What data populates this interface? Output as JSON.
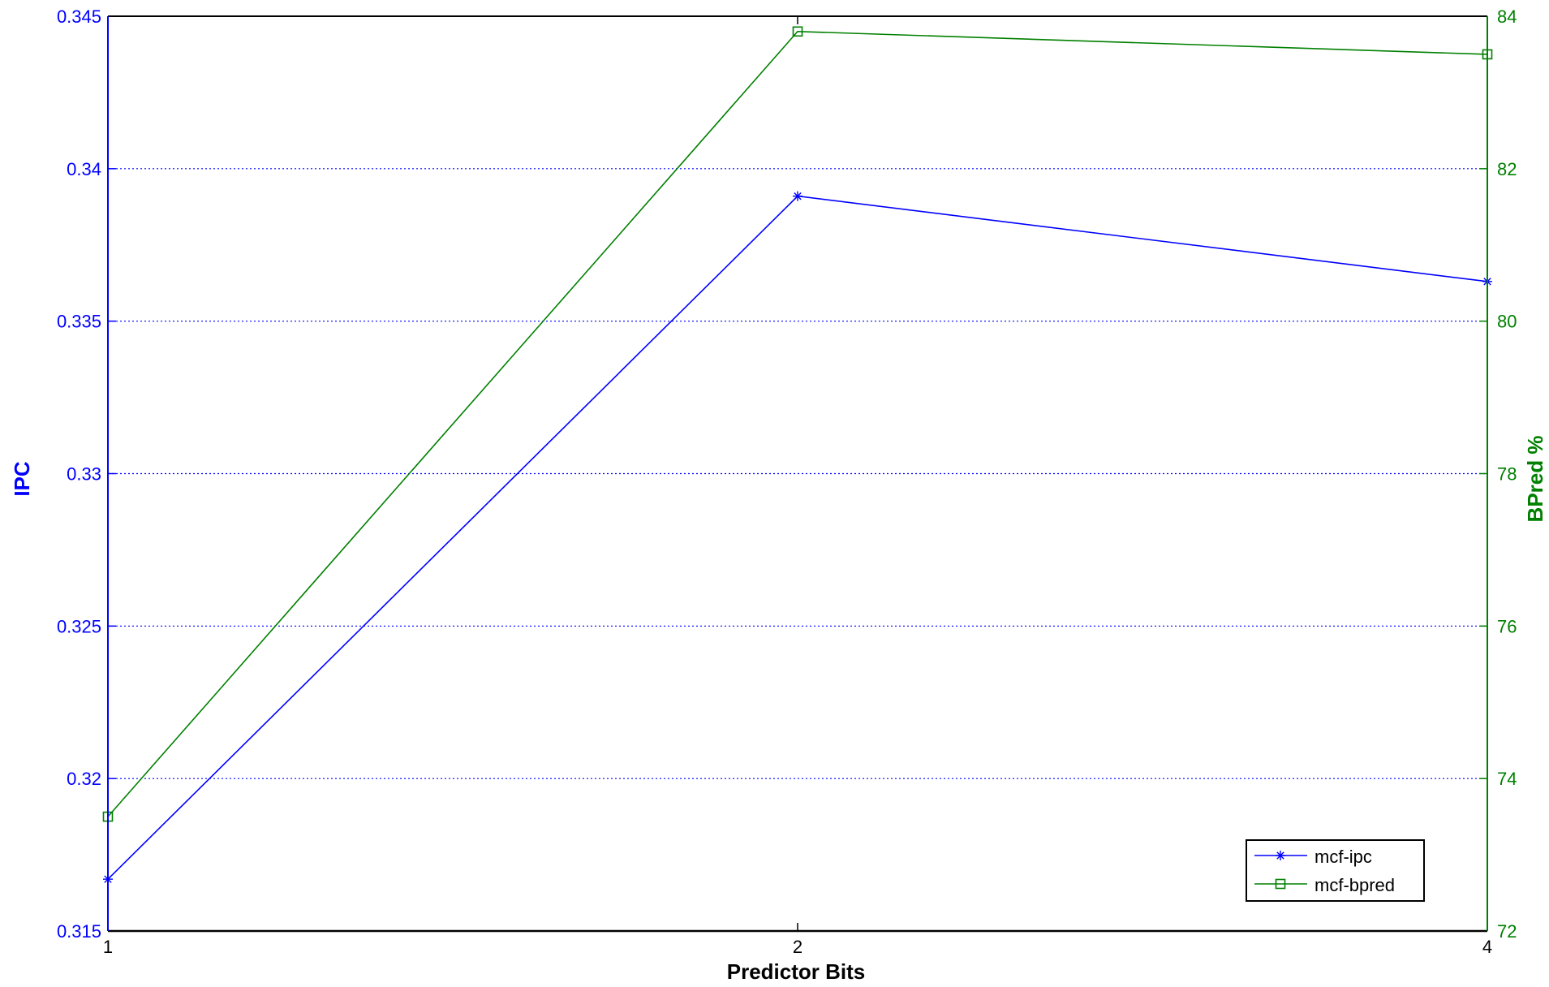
{
  "chart_data": {
    "type": "line",
    "title": "",
    "xlabel": "Predictor Bits",
    "ylabel_left": "IPC",
    "ylabel_right": "BPred %",
    "x": [
      "1",
      "2",
      "4"
    ],
    "x_tick_labels": [
      "1",
      "2",
      "4"
    ],
    "ylim_left": [
      0.315,
      0.345
    ],
    "yticks_left": [
      "0.315",
      "0.32",
      "0.325",
      "0.33",
      "0.335",
      "0.34",
      "0.345"
    ],
    "ylim_right": [
      72,
      84
    ],
    "yticks_right": [
      "72",
      "74",
      "76",
      "78",
      "80",
      "82",
      "84"
    ],
    "grid": "horizontal dotted",
    "legend_position": "bottom-right",
    "series": [
      {
        "name": "mcf-ipc",
        "axis": "left",
        "color": "#0000ff",
        "marker": "asterisk",
        "values": [
          0.3167,
          0.3391,
          0.3363
        ]
      },
      {
        "name": "mcf-bpred",
        "axis": "right",
        "color": "#008000",
        "marker": "square",
        "values": [
          73.5,
          83.8,
          83.5
        ]
      }
    ],
    "colors": {
      "left_axis": "#0000ff",
      "right_axis": "#008000",
      "grid": "#0000ff",
      "frame": "#000000"
    }
  }
}
